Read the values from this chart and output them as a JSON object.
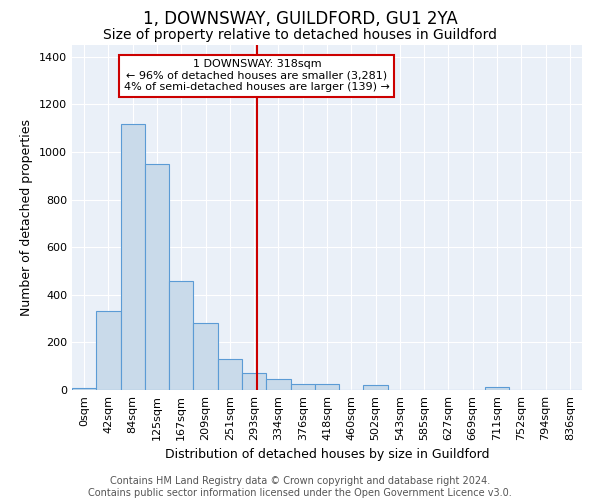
{
  "title": "1, DOWNSWAY, GUILDFORD, GU1 2YA",
  "subtitle": "Size of property relative to detached houses in Guildford",
  "xlabel": "Distribution of detached houses by size in Guildford",
  "ylabel": "Number of detached properties",
  "bar_labels": [
    "0sqm",
    "42sqm",
    "84sqm",
    "125sqm",
    "167sqm",
    "209sqm",
    "251sqm",
    "293sqm",
    "334sqm",
    "376sqm",
    "418sqm",
    "460sqm",
    "502sqm",
    "543sqm",
    "585sqm",
    "627sqm",
    "669sqm",
    "711sqm",
    "752sqm",
    "794sqm",
    "836sqm"
  ],
  "bar_values": [
    10,
    330,
    1120,
    950,
    460,
    280,
    130,
    70,
    45,
    25,
    25,
    0,
    20,
    0,
    0,
    0,
    0,
    12,
    0,
    0,
    0
  ],
  "bar_color": "#c9daea",
  "bar_edge_color": "#5b9bd5",
  "vline_color": "#cc0000",
  "annotation_title": "1 DOWNSWAY: 318sqm",
  "annotation_line1": "← 96% of detached houses are smaller (3,281)",
  "annotation_line2": "4% of semi-detached houses are larger (139) →",
  "ylim": [
    0,
    1450
  ],
  "yticks": [
    0,
    200,
    400,
    600,
    800,
    1000,
    1200,
    1400
  ],
  "bg_color": "#eaf0f8",
  "grid_color": "#ffffff",
  "footer_line1": "Contains HM Land Registry data © Crown copyright and database right 2024.",
  "footer_line2": "Contains public sector information licensed under the Open Government Licence v3.0.",
  "title_fontsize": 12,
  "subtitle_fontsize": 10,
  "label_fontsize": 9,
  "tick_fontsize": 8,
  "footer_fontsize": 7
}
